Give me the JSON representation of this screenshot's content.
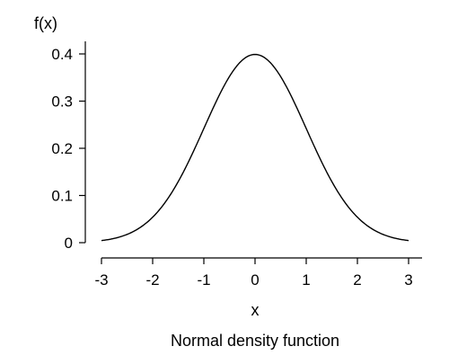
{
  "chart_data": {
    "type": "line",
    "title": "Normal density function",
    "xlabel": "x",
    "ylabel": "f(x)",
    "xlim": [
      -3,
      3
    ],
    "ylim": [
      0,
      0.4
    ],
    "x_ticks": [
      "-3",
      "-2",
      "-1",
      "0",
      "1",
      "2",
      "3"
    ],
    "y_ticks": [
      "0",
      "0.1",
      "0.2",
      "0.3",
      "0.4"
    ],
    "grid": false,
    "series": [
      {
        "x": [
          -3,
          -2.75,
          -2.5,
          -2.25,
          -2,
          -1.75,
          -1.5,
          -1.25,
          -1,
          -0.75,
          -0.5,
          -0.25,
          0,
          0.25,
          0.5,
          0.75,
          1,
          1.25,
          1.5,
          1.75,
          2,
          2.25,
          2.5,
          2.75,
          3
        ],
        "y": [
          0.0044,
          0.0091,
          0.0175,
          0.0317,
          0.054,
          0.0863,
          0.1295,
          0.1826,
          0.242,
          0.3011,
          0.3521,
          0.3867,
          0.3989,
          0.3867,
          0.3521,
          0.3011,
          0.242,
          0.1826,
          0.1295,
          0.0863,
          0.054,
          0.0317,
          0.0175,
          0.0091,
          0.0044
        ],
        "color": "#000000"
      }
    ]
  }
}
